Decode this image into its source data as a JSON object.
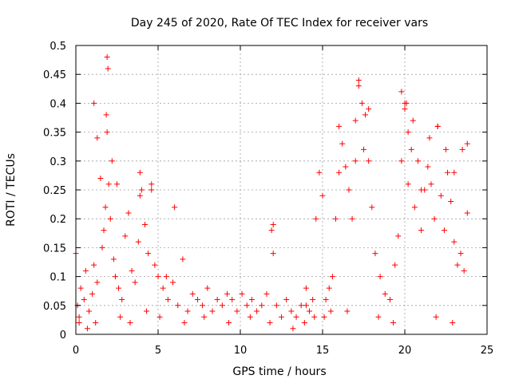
{
  "chart_data": {
    "type": "scatter",
    "title": "Day 245 of 2020, Rate Of TEC Index for receiver vars",
    "xlabel": "GPS time / hours",
    "ylabel": "ROTI / TECUs",
    "xlim": [
      0,
      25
    ],
    "ylim": [
      0,
      0.5
    ],
    "x_ticks": [
      0,
      5,
      10,
      15,
      20,
      25
    ],
    "x_tick_labels": [
      "0",
      "5",
      "10",
      "15",
      "20",
      "25"
    ],
    "y_ticks": [
      0,
      0.05,
      0.1,
      0.15,
      0.2,
      0.25,
      0.3,
      0.35,
      0.4,
      0.45,
      0.5
    ],
    "y_tick_labels": [
      "0",
      "0.05",
      "0.1",
      "0.15",
      "0.2",
      "0.25",
      "0.3",
      "0.35",
      "0.4",
      "0.45",
      "0.5"
    ],
    "grid": true,
    "marker": "plus",
    "color": "#ff0000",
    "series": [
      {
        "x": [
          0.0,
          0.1,
          0.2,
          0.3,
          0.5,
          0.6,
          0.8,
          1.0,
          1.1,
          1.3,
          1.5,
          1.6,
          1.7,
          1.8,
          1.9,
          2.0,
          2.1,
          2.3,
          2.4,
          2.6,
          2.8,
          3.0,
          3.2,
          3.4,
          3.6,
          3.8,
          3.9,
          4.0,
          4.2,
          4.4,
          4.6,
          4.8,
          5.0,
          5.3,
          5.6,
          5.9,
          6.2,
          6.5,
          6.8,
          7.1,
          7.4,
          7.7,
          8.0,
          8.3,
          8.6,
          8.9,
          9.2,
          9.5,
          9.8,
          10.1,
          10.4,
          10.7,
          11.0,
          11.3,
          11.6,
          11.9,
          12.0,
          12.2,
          12.5,
          12.8,
          13.1,
          13.4,
          13.7,
          14.0,
          14.2,
          14.4,
          14.6,
          14.8,
          15.0,
          15.2,
          15.4,
          15.6,
          15.8,
          16.0,
          16.2,
          16.4,
          16.6,
          16.8,
          17.0,
          17.2,
          17.4,
          17.6,
          17.8,
          18.0,
          18.2,
          18.5,
          18.8,
          19.1,
          19.4,
          19.6,
          19.8,
          20.0,
          20.1,
          20.2,
          20.4,
          20.6,
          20.8,
          21.0,
          21.2,
          21.4,
          21.6,
          21.8,
          22.0,
          22.2,
          22.4,
          22.6,
          22.8,
          23.0,
          23.2,
          23.4,
          23.6,
          23.8,
          1.9,
          1.95,
          1.85,
          2.2,
          2.5,
          1.1,
          1.3,
          3.9,
          4.6,
          5.5,
          6.0,
          12.0,
          14.0,
          14.5,
          15.5,
          16.0,
          17.0,
          17.2,
          17.5,
          17.8,
          19.8,
          20.0,
          20.2,
          20.5,
          21.0,
          21.5,
          22.0,
          22.5,
          23.0,
          23.5,
          23.8,
          0.2,
          0.7,
          1.2,
          2.7,
          3.3,
          4.3,
          5.1,
          6.6,
          7.8,
          9.3,
          10.6,
          11.8,
          13.2,
          13.9,
          15.1,
          16.5,
          18.4,
          19.3,
          21.9,
          22.9
        ],
        "y": [
          0.14,
          0.05,
          0.03,
          0.08,
          0.06,
          0.11,
          0.04,
          0.07,
          0.12,
          0.09,
          0.27,
          0.15,
          0.18,
          0.22,
          0.35,
          0.26,
          0.2,
          0.13,
          0.1,
          0.08,
          0.06,
          0.17,
          0.21,
          0.11,
          0.09,
          0.16,
          0.24,
          0.25,
          0.19,
          0.14,
          0.26,
          0.12,
          0.1,
          0.08,
          0.06,
          0.09,
          0.05,
          0.13,
          0.04,
          0.07,
          0.06,
          0.05,
          0.08,
          0.04,
          0.06,
          0.05,
          0.07,
          0.06,
          0.04,
          0.07,
          0.05,
          0.06,
          0.04,
          0.05,
          0.07,
          0.18,
          0.14,
          0.05,
          0.03,
          0.06,
          0.04,
          0.03,
          0.05,
          0.08,
          0.04,
          0.06,
          0.2,
          0.28,
          0.24,
          0.06,
          0.08,
          0.1,
          0.2,
          0.36,
          0.33,
          0.29,
          0.25,
          0.2,
          0.3,
          0.44,
          0.4,
          0.38,
          0.3,
          0.22,
          0.14,
          0.1,
          0.07,
          0.06,
          0.12,
          0.17,
          0.3,
          0.39,
          0.4,
          0.35,
          0.32,
          0.22,
          0.3,
          0.18,
          0.25,
          0.29,
          0.26,
          0.2,
          0.36,
          0.24,
          0.18,
          0.28,
          0.23,
          0.16,
          0.12,
          0.14,
          0.11,
          0.33,
          0.48,
          0.46,
          0.38,
          0.3,
          0.26,
          0.4,
          0.34,
          0.28,
          0.25,
          0.1,
          0.22,
          0.19,
          0.05,
          0.03,
          0.04,
          0.28,
          0.37,
          0.43,
          0.32,
          0.39,
          0.42,
          0.4,
          0.26,
          0.37,
          0.25,
          0.34,
          0.36,
          0.32,
          0.28,
          0.32,
          0.21,
          0.02,
          0.01,
          0.02,
          0.03,
          0.02,
          0.04,
          0.03,
          0.02,
          0.03,
          0.02,
          0.03,
          0.02,
          0.01,
          0.02,
          0.03,
          0.04,
          0.03,
          0.02,
          0.03,
          0.02
        ]
      }
    ]
  }
}
